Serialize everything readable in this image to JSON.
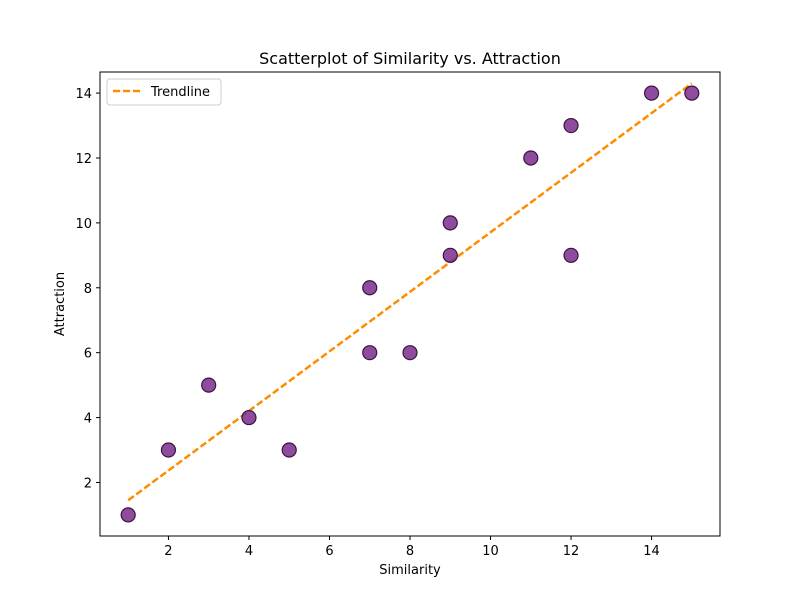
{
  "chart_data": {
    "type": "scatter",
    "title": "Scatterplot of Similarity vs. Attraction",
    "xlabel": "Similarity",
    "ylabel": "Attraction",
    "xlim": [
      0.3,
      15.7
    ],
    "ylim": [
      0.35,
      14.65
    ],
    "xticks": [
      2,
      4,
      6,
      8,
      10,
      12,
      14
    ],
    "yticks": [
      2,
      4,
      6,
      8,
      10,
      12,
      14
    ],
    "grid": false,
    "legend": {
      "placement": "top-left",
      "entries": [
        "Trendline"
      ]
    },
    "points": {
      "x": [
        1,
        2,
        3,
        4,
        5,
        7,
        7,
        8,
        9,
        9,
        11,
        12,
        12,
        14,
        15
      ],
      "y": [
        1,
        3,
        5,
        4,
        3,
        8,
        6,
        6,
        10,
        9,
        12,
        13,
        9,
        14,
        14
      ],
      "color": "#7b2d8e",
      "edge_color": "#3a1540"
    },
    "trendline": {
      "name": "Trendline",
      "x": [
        1,
        15
      ],
      "y": [
        1.45,
        14.3
      ],
      "color": "#ff8c00",
      "style": "dashed"
    }
  }
}
